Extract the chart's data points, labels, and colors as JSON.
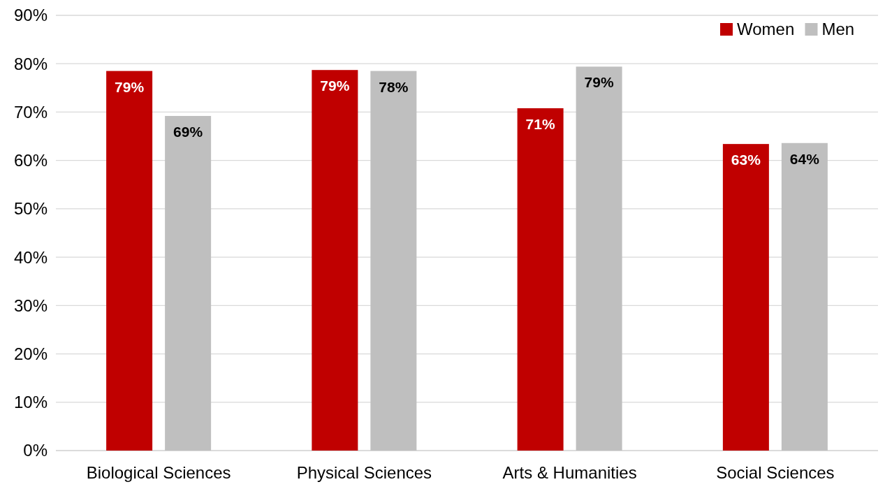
{
  "chart_data": {
    "type": "bar",
    "categories": [
      "Biological Sciences",
      "Physical Sciences",
      "Arts & Humanities",
      "Social Sciences"
    ],
    "series": [
      {
        "name": "Women",
        "color": "#c00000",
        "values": [
          78.5,
          78.7,
          70.8,
          63.4
        ],
        "value_labels": [
          "79%",
          "79%",
          "71%",
          "63%"
        ]
      },
      {
        "name": "Men",
        "color": "#bfbfbf",
        "values": [
          69.2,
          78.5,
          79.4,
          63.6
        ],
        "value_labels": [
          "69%",
          "78%",
          "79%",
          "64%"
        ]
      }
    ],
    "ylim": [
      0,
      90
    ],
    "yticks": [
      {
        "value": 0,
        "label": "0%"
      },
      {
        "value": 10,
        "label": "10%"
      },
      {
        "value": 20,
        "label": "20%"
      },
      {
        "value": 30,
        "label": "30%"
      },
      {
        "value": 40,
        "label": "40%"
      },
      {
        "value": 50,
        "label": "50%"
      },
      {
        "value": 60,
        "label": "60%"
      },
      {
        "value": 70,
        "label": "70%"
      },
      {
        "value": 80,
        "label": "80%"
      },
      {
        "value": 90,
        "label": "90%"
      }
    ],
    "grid": "y",
    "legend": "top right"
  }
}
